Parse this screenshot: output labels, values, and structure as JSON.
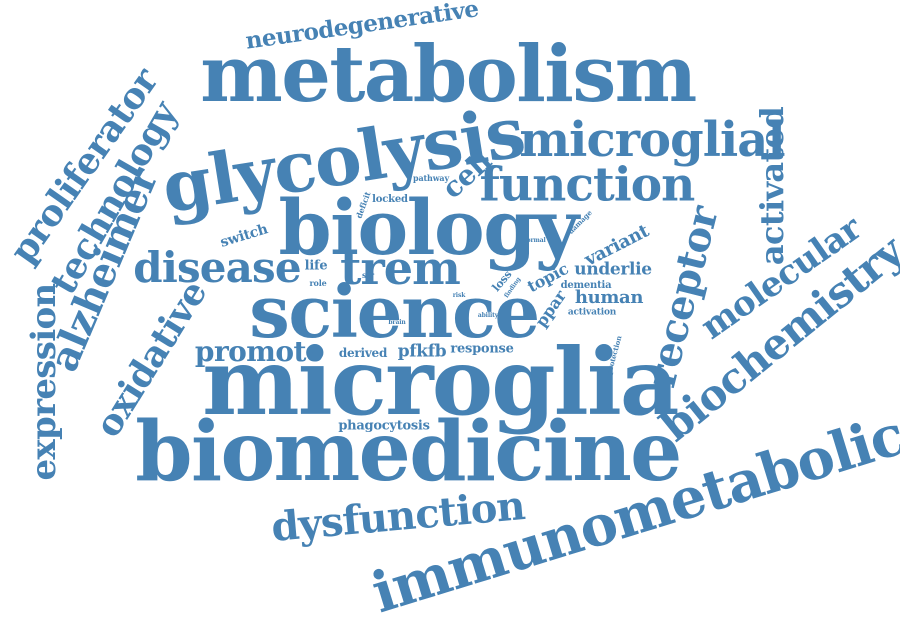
{
  "color": "#4682b4",
  "words": [
    {
      "text": "microglia",
      "weight": 10
    },
    {
      "text": "biomedicine",
      "weight": 9.5
    },
    {
      "text": "metabolism",
      "weight": 9
    },
    {
      "text": "biology",
      "weight": 8.5
    },
    {
      "text": "science",
      "weight": 8.5
    },
    {
      "text": "glycolysis",
      "weight": 8.5
    },
    {
      "text": "immunometabolic",
      "weight": 7
    },
    {
      "text": "microglial",
      "weight": 6
    },
    {
      "text": "function",
      "weight": 6
    },
    {
      "text": "trem",
      "weight": 6
    },
    {
      "text": "disease",
      "weight": 5
    },
    {
      "text": "biochemistry",
      "weight": 5
    },
    {
      "text": "dysfunction",
      "weight": 5
    },
    {
      "text": "receptor",
      "weight": 5
    },
    {
      "text": "alzheimer",
      "weight": 5
    },
    {
      "text": "technology",
      "weight": 4.5
    },
    {
      "text": "proliferator",
      "weight": 4.5
    },
    {
      "text": "expression",
      "weight": 4.5
    },
    {
      "text": "molecular",
      "weight": 4.5
    },
    {
      "text": "oxidative",
      "weight": 4.5
    },
    {
      "text": "promote",
      "weight": 4
    },
    {
      "text": "activated",
      "weight": 4
    },
    {
      "text": "cell",
      "weight": 4
    },
    {
      "text": "neurodegenerative",
      "weight": 3.5
    },
    {
      "text": "variant",
      "weight": 2.5
    },
    {
      "text": "pfkfb",
      "weight": 2.5
    },
    {
      "text": "human",
      "weight": 2.5
    },
    {
      "text": "underlie",
      "weight": 2.5
    },
    {
      "text": "topic",
      "weight": 2.5
    },
    {
      "text": "ppar",
      "weight": 2.5
    },
    {
      "text": "switch",
      "weight": 2
    },
    {
      "text": "response",
      "weight": 2
    },
    {
      "text": "phagocytosis",
      "weight": 2
    },
    {
      "text": "derived",
      "weight": 2
    },
    {
      "text": "life",
      "weight": 2
    },
    {
      "text": "dementia",
      "weight": 1.5
    },
    {
      "text": "locked",
      "weight": 1.5
    },
    {
      "text": "loss",
      "weight": 1.5
    },
    {
      "text": "activation",
      "weight": 1.3
    },
    {
      "text": "pathway",
      "weight": 1.2
    },
    {
      "text": "role",
      "weight": 1.2
    },
    {
      "text": "deficit",
      "weight": 1.1
    },
    {
      "text": "str",
      "weight": 1.1
    },
    {
      "text": "damage",
      "weight": 1
    },
    {
      "text": "normal",
      "weight": 1
    },
    {
      "text": "protection",
      "weight": 1
    },
    {
      "text": "finding",
      "weight": 1
    },
    {
      "text": "risk",
      "weight": 1
    },
    {
      "text": "brain",
      "weight": 1
    },
    {
      "text": "ability",
      "weight": 1
    }
  ]
}
